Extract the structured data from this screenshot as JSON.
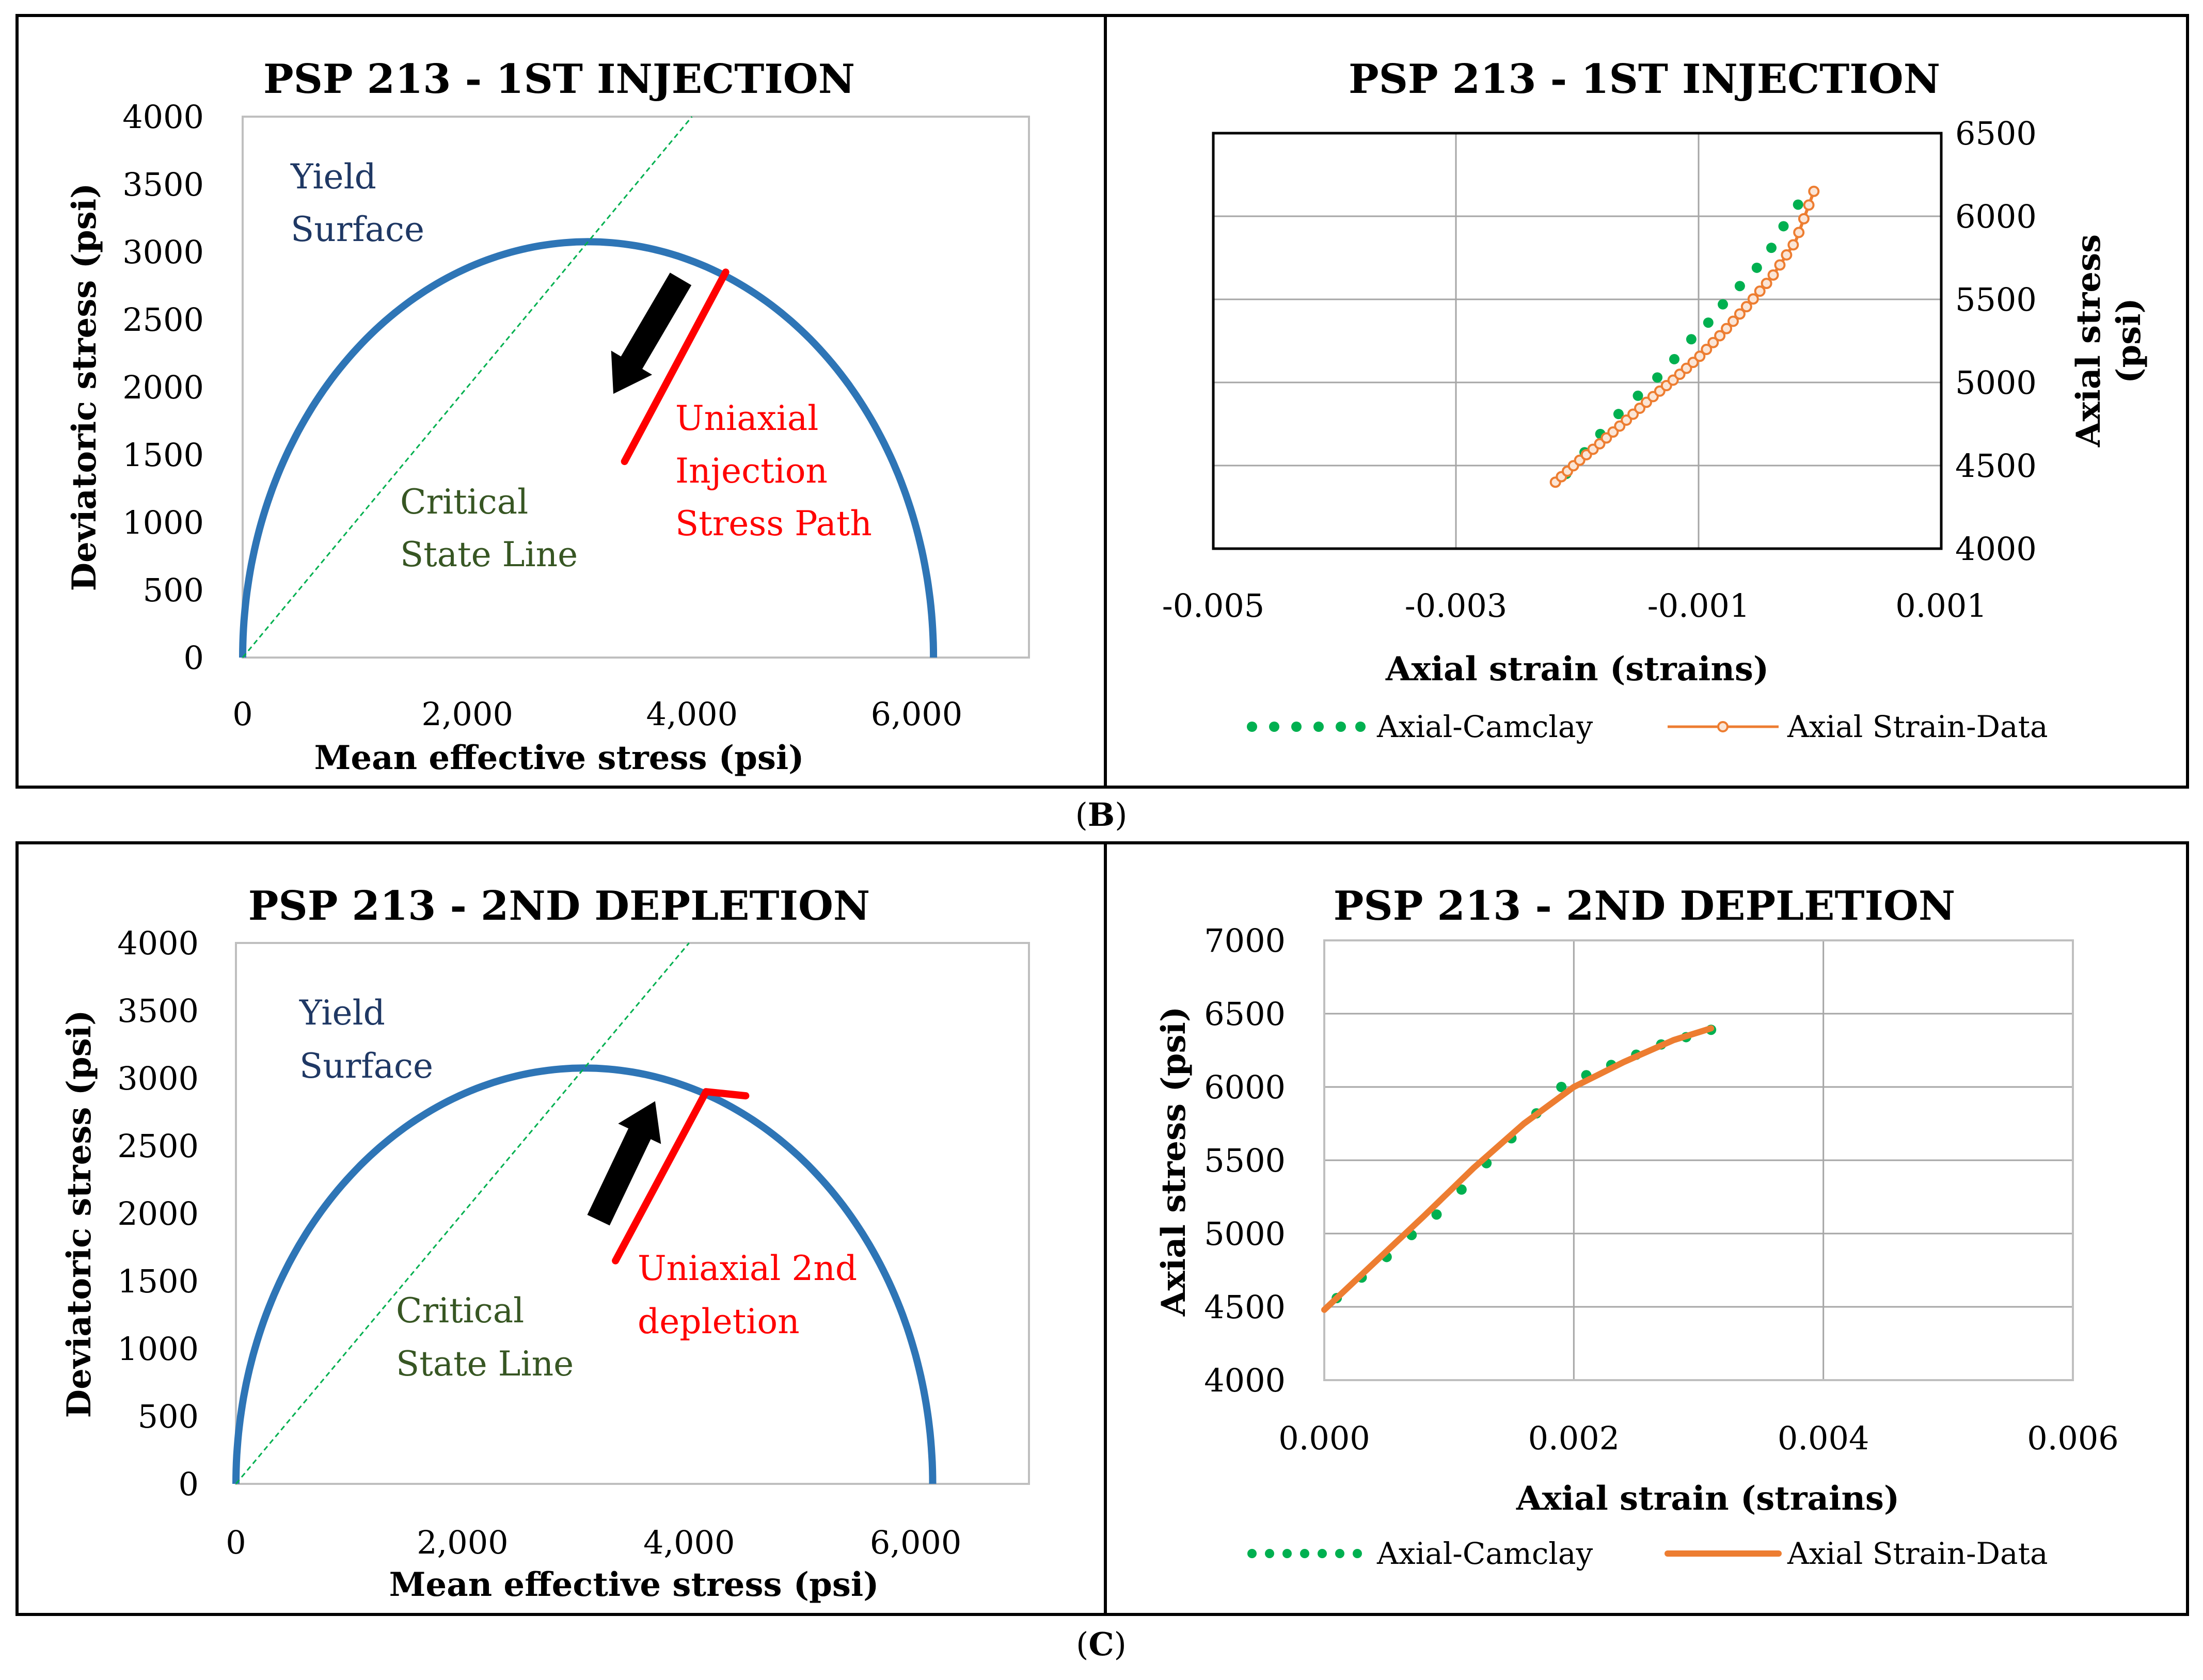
{
  "figure": {
    "panel_label_B": "B",
    "panel_label_C": "C"
  },
  "chart_data": [
    {
      "id": "b-left",
      "type": "line",
      "title": "PSP 213 - 1ST INJECTION",
      "xlabel": "Mean effective stress (psi)",
      "ylabel": "Deviatoric stress (psi)",
      "xlim": [
        0,
        7000
      ],
      "ylim": [
        0,
        4000
      ],
      "xticks": [
        "0",
        "2,000",
        "4,000",
        "6,000"
      ],
      "yticks": [
        "0",
        "500",
        "1000",
        "1500",
        "2000",
        "2500",
        "3000",
        "3500",
        "4000"
      ],
      "series": [
        {
          "name": "Yield Surface",
          "color": "#2e75b6",
          "shape": "ellipse",
          "p0": 3075,
          "a": 3075,
          "b": 3075
        },
        {
          "name": "Critical State Line",
          "color": "#00b050",
          "style": "dashed",
          "x": [
            0,
            4000
          ],
          "y": [
            0,
            4000
          ]
        },
        {
          "name": "Uniaxial Injection Stress Path",
          "color": "#ff0000",
          "x": [
            4300,
            3400
          ],
          "y": [
            2850,
            1450
          ]
        }
      ],
      "arrow": {
        "direction": "down-left",
        "from": [
          3900,
          2800
        ],
        "to": [
          3300,
          1950
        ],
        "color": "#000000"
      },
      "annotations": {
        "yield_1": "Yield",
        "yield_2": "Surface",
        "csl_1": "Critical",
        "csl_2": "State Line",
        "path_1": "Uniaxial",
        "path_2": "Injection",
        "path_3": "Stress Path"
      }
    },
    {
      "id": "b-right",
      "type": "line",
      "title": "PSP 213 - 1ST INJECTION",
      "xlabel": "Axial strain (strains)",
      "ylabel": "Axial stress (psi)",
      "xlim": [
        -0.005,
        0.001
      ],
      "ylim": [
        4000,
        6500
      ],
      "xticks": [
        "-0.005",
        "-0.003",
        "-0.001",
        "0.001"
      ],
      "yticks": [
        "4000",
        "4500",
        "5000",
        "5500",
        "6000",
        "6500"
      ],
      "series": [
        {
          "name": "Axial-Camclay",
          "color": "#00b050",
          "style": "dotted",
          "x": [
            -0.00209,
            -0.00194,
            -0.00181,
            -0.00166,
            -0.0015,
            -0.00134,
            -0.0012,
            -0.00106,
            -0.00092,
            -0.0008,
            -0.00066,
            -0.00052,
            -0.0004,
            -0.0003,
            -0.00018
          ],
          "y": [
            4450,
            4580,
            4690,
            4810,
            4920,
            5030,
            5140,
            5260,
            5360,
            5470,
            5580,
            5690,
            5810,
            5940,
            6070
          ]
        },
        {
          "name": "Axial Strain-Data",
          "color": "#ed7d31",
          "style": "line-markers",
          "x": [
            -0.00218,
            -0.002,
            -0.0018,
            -0.0016,
            -0.0014,
            -0.0012,
            -0.001,
            -0.0008,
            -0.0006,
            -0.0004,
            -0.0002,
            -5e-05
          ],
          "y": [
            4400,
            4520,
            4640,
            4770,
            4900,
            5020,
            5150,
            5300,
            5460,
            5630,
            5850,
            6150
          ]
        }
      ]
    },
    {
      "id": "c-left",
      "type": "line",
      "title": "PSP 213 - 2ND DEPLETION",
      "xlabel": "Mean effective stress (psi)",
      "ylabel": "Deviatoric stress (psi)",
      "xlim": [
        0,
        7000
      ],
      "ylim": [
        0,
        4000
      ],
      "xticks": [
        "0",
        "2,000",
        "4,000",
        "6,000"
      ],
      "yticks": [
        "0",
        "500",
        "1000",
        "1500",
        "2000",
        "2500",
        "3000",
        "3500",
        "4000"
      ],
      "series": [
        {
          "name": "Yield Surface",
          "color": "#2e75b6",
          "shape": "ellipse",
          "p0": 3075,
          "a": 3075,
          "b": 3075
        },
        {
          "name": "Critical State Line",
          "color": "#00b050",
          "style": "dashed",
          "x": [
            0,
            4000
          ],
          "y": [
            0,
            4000
          ]
        },
        {
          "name": "Uniaxial 2nd depletion",
          "color": "#ff0000",
          "x": [
            3350,
            4150,
            4500
          ],
          "y": [
            1650,
            2900,
            2870
          ]
        }
      ],
      "arrow": {
        "direction": "up-right",
        "from": [
          3200,
          1950
        ],
        "to": [
          3700,
          2830
        ],
        "color": "#000000"
      },
      "annotations": {
        "yield_1": "Yield",
        "yield_2": "Surface",
        "csl_1": "Critical",
        "csl_2": "State Line",
        "path_1": "Uniaxial 2nd",
        "path_2": "depletion"
      }
    },
    {
      "id": "c-right",
      "type": "line",
      "title": "PSP 213 - 2ND DEPLETION",
      "xlabel": "Axial strain (strains)",
      "ylabel": "Axial stress (psi)",
      "xlim": [
        0,
        0.006
      ],
      "ylim": [
        4000,
        7000
      ],
      "xticks": [
        "0.000",
        "0.002",
        "0.004",
        "0.006"
      ],
      "yticks": [
        "4000",
        "4500",
        "5000",
        "5500",
        "6000",
        "6500",
        "7000"
      ],
      "series": [
        {
          "name": "Axial-Camclay",
          "color": "#00b050",
          "style": "dotted",
          "x": [
            0.0001,
            0.0003,
            0.0005,
            0.0007,
            0.0009,
            0.0011,
            0.0013,
            0.0015,
            0.0017,
            0.0019,
            0.0021,
            0.0023,
            0.0025,
            0.0027,
            0.0029,
            0.0031
          ],
          "y": [
            4560,
            4700,
            4840,
            4990,
            5130,
            5300,
            5480,
            5650,
            5820,
            6000,
            6080,
            6150,
            6220,
            6290,
            6340,
            6390
          ]
        },
        {
          "name": "Axial Strain-Data",
          "color": "#ed7d31",
          "style": "line",
          "x": [
            0.0,
            0.0004,
            0.0008,
            0.0012,
            0.0016,
            0.002,
            0.0024,
            0.0028,
            0.0031
          ],
          "y": [
            4480,
            4800,
            5120,
            5450,
            5750,
            6000,
            6170,
            6320,
            6400
          ]
        }
      ]
    }
  ]
}
